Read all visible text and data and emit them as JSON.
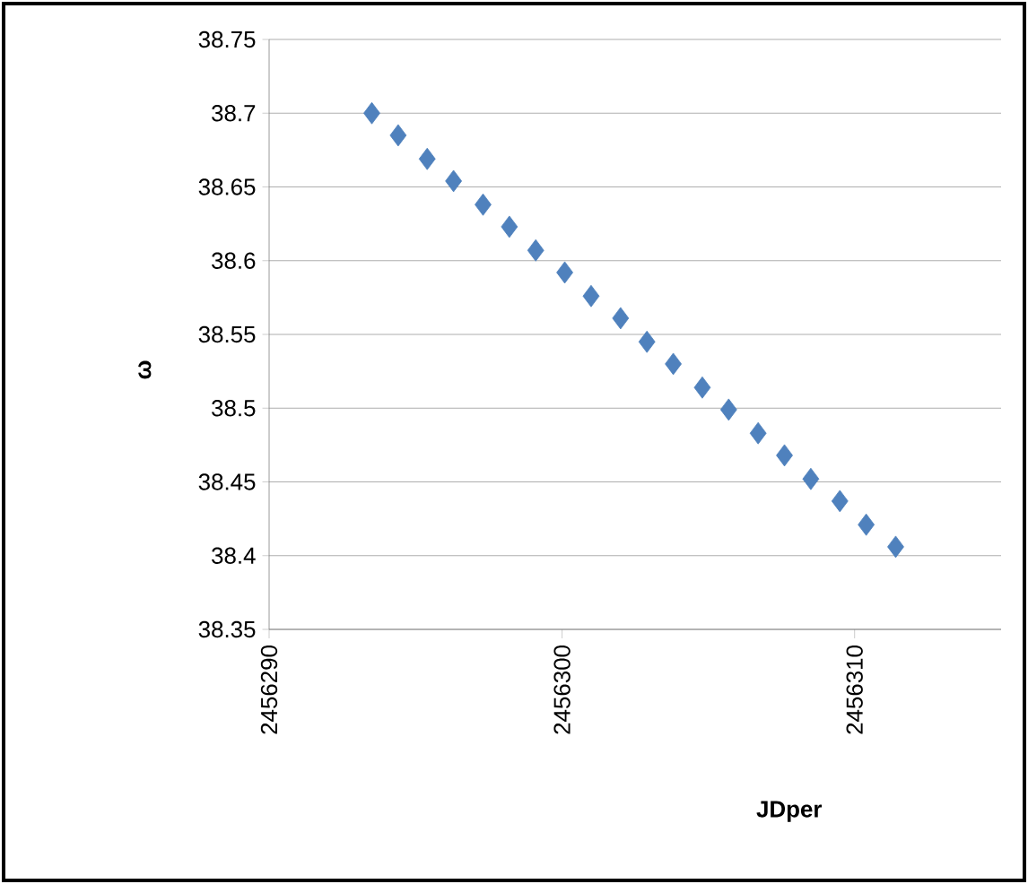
{
  "chart_data": {
    "type": "scatter",
    "xlabel": "JDper",
    "ylabel": "ω",
    "series": [
      {
        "color": "#4f81bd",
        "x": [
          2456293.5,
          2456294.4,
          2456295.4,
          2456296.3,
          2456297.3,
          2456298.2,
          2456299.1,
          2456300.1,
          2456301.0,
          2456302.0,
          2456302.9,
          2456303.8,
          2456304.8,
          2456305.7,
          2456306.7,
          2456307.6,
          2456308.5,
          2456309.5,
          2456310.4,
          2456311.4
        ],
        "values": [
          38.7,
          38.685,
          38.669,
          38.654,
          38.638,
          38.623,
          38.607,
          38.592,
          38.576,
          38.561,
          38.545,
          38.53,
          38.514,
          38.499,
          38.483,
          38.468,
          38.452,
          38.437,
          38.421,
          38.406
        ]
      }
    ],
    "xlim": [
      2456290,
      2456315
    ],
    "xticks": [
      2456290,
      2456300,
      2456310
    ],
    "ylim": [
      38.35,
      38.75
    ],
    "yticks": [
      38.35,
      38.4,
      38.45,
      38.5,
      38.55,
      38.6,
      38.65,
      38.7,
      38.75
    ],
    "grid": "y",
    "marker": "diamond"
  }
}
